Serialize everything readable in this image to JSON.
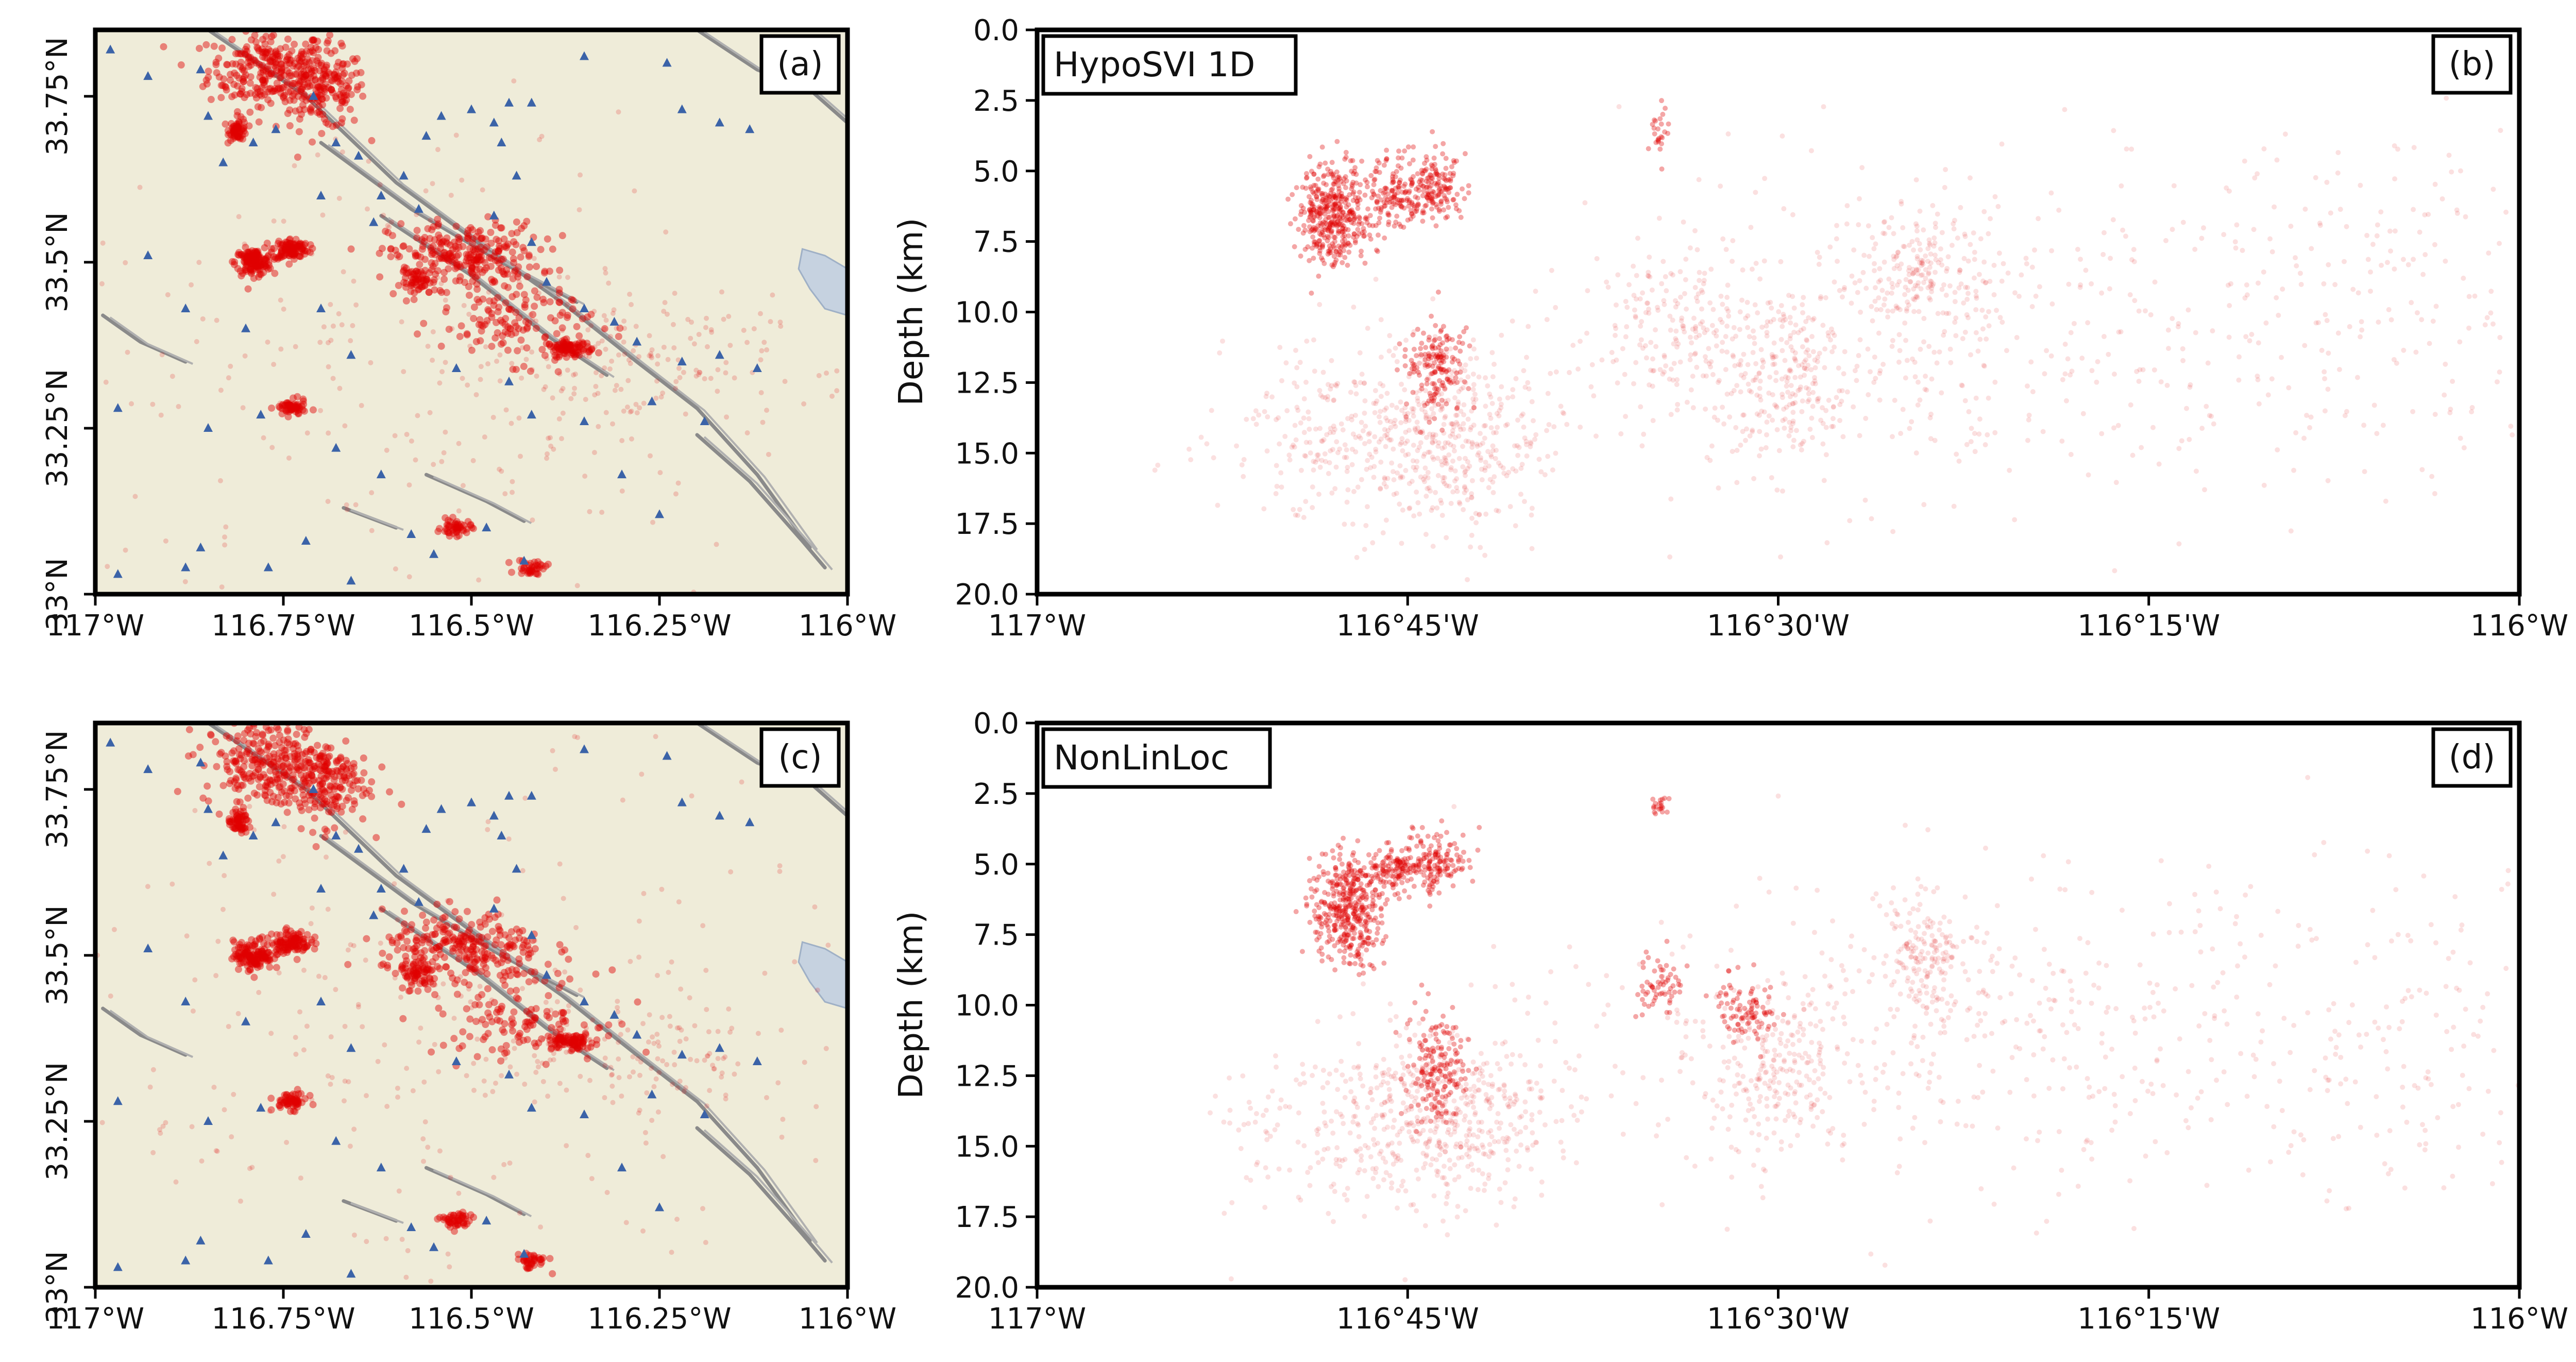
{
  "figure": {
    "description_free": true
  },
  "chart_data": [
    {
      "type": "map",
      "panel_label": "(a)",
      "xlim": [
        -117,
        -116
      ],
      "ylim": [
        33.0,
        33.85
      ],
      "xticks": [
        -117,
        -116.75,
        -116.5,
        -116.25,
        -116
      ],
      "xtick_labels": [
        "117°W",
        "116.75°W",
        "116.5°W",
        "116.25°W",
        "116°W"
      ],
      "yticks": [
        33.0,
        33.25,
        33.5,
        33.75
      ],
      "ytick_labels": [
        "33°N",
        "33.25°N",
        "33.5°N",
        "33.75°N"
      ],
      "legend": [],
      "colors": {
        "land": "#efecd9",
        "lake": "#c6d2e0",
        "events": "#e00000",
        "stations": "#3b63a8",
        "faults": "#8a8a8a"
      }
    },
    {
      "type": "scatter",
      "panel_label": "(b)",
      "method_label": "HypoSVI 1D",
      "xlim": [
        -117,
        -116
      ],
      "ylim": [
        20,
        0
      ],
      "xticks": [
        -117,
        -116.75,
        -116.5,
        -116.25,
        -116
      ],
      "xtick_labels": [
        "117°W",
        "116°45'W",
        "116°30'W",
        "116°15'W",
        "116°W"
      ],
      "yticks": [
        0,
        2.5,
        5,
        7.5,
        10,
        12.5,
        15,
        17.5,
        20
      ],
      "ytick_labels": [
        "0.0",
        "2.5",
        "5.0",
        "7.5",
        "10.0",
        "12.5",
        "15.0",
        "17.5",
        "20.0"
      ],
      "ylabel": "Depth (km)",
      "xlabel": "",
      "color": "#e00000"
    },
    {
      "type": "map",
      "panel_label": "(c)",
      "xlim": [
        -117,
        -116
      ],
      "ylim": [
        33.0,
        33.85
      ],
      "xticks": [
        -117,
        -116.75,
        -116.5,
        -116.25,
        -116
      ],
      "xtick_labels": [
        "117°W",
        "116.75°W",
        "116.5°W",
        "116.25°W",
        "116°W"
      ],
      "yticks": [
        33.0,
        33.25,
        33.5,
        33.75
      ],
      "ytick_labels": [
        "33°N",
        "33.25°N",
        "33.5°N",
        "33.75°N"
      ],
      "legend": [],
      "colors": {
        "land": "#efecd9",
        "lake": "#c6d2e0",
        "events": "#e00000",
        "stations": "#3b63a8",
        "faults": "#8a8a8a"
      }
    },
    {
      "type": "scatter",
      "panel_label": "(d)",
      "method_label": "NonLinLoc",
      "xlim": [
        -117,
        -116
      ],
      "ylim": [
        20,
        0
      ],
      "xticks": [
        -117,
        -116.75,
        -116.5,
        -116.25,
        -116
      ],
      "xtick_labels": [
        "117°W",
        "116°45'W",
        "116°30'W",
        "116°15'W",
        "116°W"
      ],
      "yticks": [
        0,
        2.5,
        5,
        7.5,
        10,
        12.5,
        15,
        17.5,
        20
      ],
      "ytick_labels": [
        "0.0",
        "2.5",
        "5.0",
        "7.5",
        "10.0",
        "12.5",
        "15.0",
        "17.5",
        "20.0"
      ],
      "ylabel": "Depth (km)",
      "xlabel": "",
      "color": "#e00000"
    }
  ],
  "event_clusters": {
    "note_units": "lon (deg), lat (deg) for map; lon (deg), depth (km) for sections; counts are event counts",
    "map": [
      {
        "lon": -116.77,
        "lat": 33.79,
        "slon": 0.04,
        "slat": 0.03,
        "n": 260
      },
      {
        "lon": -116.7,
        "lat": 33.76,
        "slon": 0.03,
        "slat": 0.03,
        "n": 180
      },
      {
        "lon": -116.81,
        "lat": 33.7,
        "slon": 0.006,
        "slat": 0.008,
        "n": 60
      },
      {
        "lon": -116.79,
        "lat": 33.5,
        "slon": 0.012,
        "slat": 0.01,
        "n": 140
      },
      {
        "lon": -116.74,
        "lat": 33.52,
        "slon": 0.012,
        "slat": 0.008,
        "n": 110
      },
      {
        "lon": -116.51,
        "lat": 33.51,
        "slon": 0.05,
        "slat": 0.025,
        "n": 260
      },
      {
        "lon": -116.57,
        "lat": 33.47,
        "slon": 0.012,
        "slat": 0.01,
        "n": 60
      },
      {
        "lon": -116.37,
        "lat": 33.37,
        "slon": 0.015,
        "slat": 0.006,
        "n": 90
      },
      {
        "lon": -116.44,
        "lat": 33.41,
        "slon": 0.05,
        "slat": 0.03,
        "n": 120
      },
      {
        "lon": -116.74,
        "lat": 33.28,
        "slon": 0.01,
        "slat": 0.006,
        "n": 60
      },
      {
        "lon": -116.52,
        "lat": 33.1,
        "slon": 0.01,
        "slat": 0.006,
        "n": 50
      },
      {
        "lon": -116.42,
        "lat": 33.04,
        "slon": 0.01,
        "slat": 0.006,
        "n": 40
      },
      {
        "lon": -116.3,
        "lat": 33.35,
        "slon": 0.1,
        "slat": 0.05,
        "n": 140
      },
      {
        "lon": -116.55,
        "lat": 33.35,
        "slon": 0.25,
        "slat": 0.2,
        "n": 260
      }
    ],
    "section_b": [
      {
        "lon": -116.8,
        "depth": 6.6,
        "slon": 0.012,
        "sdepth": 0.9,
        "n": 420
      },
      {
        "lon": -116.76,
        "depth": 5.7,
        "slon": 0.01,
        "sdepth": 0.6,
        "n": 140
      },
      {
        "lon": -116.73,
        "depth": 5.6,
        "slon": 0.01,
        "sdepth": 0.6,
        "n": 150
      },
      {
        "lon": -116.73,
        "depth": 12.0,
        "slon": 0.01,
        "sdepth": 0.8,
        "n": 160
      },
      {
        "lon": -116.77,
        "depth": 14.2,
        "slon": 0.05,
        "sdepth": 1.6,
        "n": 380
      },
      {
        "lon": -116.71,
        "depth": 14.5,
        "slon": 0.03,
        "sdepth": 1.6,
        "n": 260
      },
      {
        "lon": -116.57,
        "depth": 10.5,
        "slon": 0.03,
        "sdepth": 1.3,
        "n": 160
      },
      {
        "lon": -116.5,
        "depth": 12.5,
        "slon": 0.025,
        "sdepth": 1.5,
        "n": 220
      },
      {
        "lon": -116.4,
        "depth": 8.6,
        "slon": 0.02,
        "sdepth": 1.2,
        "n": 200
      },
      {
        "lon": -116.45,
        "depth": 11.0,
        "slon": 0.12,
        "sdepth": 3.0,
        "n": 320
      },
      {
        "lon": -116.2,
        "depth": 10.5,
        "slon": 0.12,
        "sdepth": 3.0,
        "n": 240
      },
      {
        "lon": -116.05,
        "depth": 9.0,
        "slon": 0.06,
        "sdepth": 3.0,
        "n": 90
      },
      {
        "lon": -116.58,
        "depth": 3.8,
        "slon": 0.003,
        "sdepth": 0.6,
        "n": 25
      }
    ],
    "section_d": [
      {
        "lon": -116.79,
        "depth": 6.5,
        "slon": 0.012,
        "sdepth": 1.0,
        "n": 420
      },
      {
        "lon": -116.76,
        "depth": 5.2,
        "slon": 0.008,
        "sdepth": 0.4,
        "n": 120
      },
      {
        "lon": -116.73,
        "depth": 5.0,
        "slon": 0.01,
        "sdepth": 0.6,
        "n": 150
      },
      {
        "lon": -116.73,
        "depth": 12.3,
        "slon": 0.01,
        "sdepth": 1.0,
        "n": 170
      },
      {
        "lon": -116.77,
        "depth": 14.0,
        "slon": 0.05,
        "sdepth": 1.6,
        "n": 360
      },
      {
        "lon": -116.71,
        "depth": 14.2,
        "slon": 0.03,
        "sdepth": 1.6,
        "n": 250
      },
      {
        "lon": -116.58,
        "depth": 9.3,
        "slon": 0.008,
        "sdepth": 0.5,
        "n": 60
      },
      {
        "lon": -116.52,
        "depth": 10.2,
        "slon": 0.01,
        "sdepth": 0.6,
        "n": 90
      },
      {
        "lon": -116.5,
        "depth": 12.2,
        "slon": 0.025,
        "sdepth": 1.4,
        "n": 200
      },
      {
        "lon": -116.4,
        "depth": 8.2,
        "slon": 0.015,
        "sdepth": 1.0,
        "n": 180
      },
      {
        "lon": -116.45,
        "depth": 11.0,
        "slon": 0.12,
        "sdepth": 3.0,
        "n": 300
      },
      {
        "lon": -116.2,
        "depth": 11.0,
        "slon": 0.12,
        "sdepth": 2.8,
        "n": 230
      },
      {
        "lon": -116.05,
        "depth": 11.5,
        "slon": 0.06,
        "sdepth": 2.5,
        "n": 90
      },
      {
        "lon": -116.58,
        "depth": 3.0,
        "slon": 0.003,
        "sdepth": 0.2,
        "n": 20
      }
    ]
  },
  "stations": [
    [
      -116.98,
      33.82
    ],
    [
      -116.93,
      33.78
    ],
    [
      -116.86,
      33.79
    ],
    [
      -116.85,
      33.72
    ],
    [
      -116.83,
      33.65
    ],
    [
      -116.79,
      33.68
    ],
    [
      -116.76,
      33.7
    ],
    [
      -116.71,
      33.75
    ],
    [
      -116.68,
      33.68
    ],
    [
      -116.65,
      33.66
    ],
    [
      -116.62,
      33.6
    ],
    [
      -116.59,
      33.63
    ],
    [
      -116.56,
      33.69
    ],
    [
      -116.54,
      33.72
    ],
    [
      -116.5,
      33.73
    ],
    [
      -116.47,
      33.71
    ],
    [
      -116.45,
      33.74
    ],
    [
      -116.46,
      33.68
    ],
    [
      -116.44,
      33.63
    ],
    [
      -116.42,
      33.74
    ],
    [
      -116.35,
      33.81
    ],
    [
      -116.24,
      33.8
    ],
    [
      -116.22,
      33.73
    ],
    [
      -116.17,
      33.71
    ],
    [
      -116.13,
      33.7
    ],
    [
      -116.7,
      33.6
    ],
    [
      -116.63,
      33.56
    ],
    [
      -116.57,
      33.58
    ],
    [
      -116.47,
      33.57
    ],
    [
      -116.42,
      33.53
    ],
    [
      -116.4,
      33.47
    ],
    [
      -116.35,
      33.43
    ],
    [
      -116.31,
      33.41
    ],
    [
      -116.28,
      33.38
    ],
    [
      -116.22,
      33.35
    ],
    [
      -116.17,
      33.36
    ],
    [
      -116.12,
      33.34
    ],
    [
      -116.93,
      33.51
    ],
    [
      -116.88,
      33.43
    ],
    [
      -116.8,
      33.4
    ],
    [
      -116.7,
      33.43
    ],
    [
      -116.66,
      33.36
    ],
    [
      -116.52,
      33.34
    ],
    [
      -116.45,
      33.32
    ],
    [
      -116.42,
      33.27
    ],
    [
      -116.35,
      33.26
    ],
    [
      -116.26,
      33.29
    ],
    [
      -116.19,
      33.26
    ],
    [
      -116.97,
      33.28
    ],
    [
      -116.85,
      33.25
    ],
    [
      -116.78,
      33.27
    ],
    [
      -116.68,
      33.22
    ],
    [
      -116.62,
      33.18
    ],
    [
      -116.58,
      33.09
    ],
    [
      -116.55,
      33.06
    ],
    [
      -116.48,
      33.1
    ],
    [
      -116.43,
      33.05
    ],
    [
      -116.66,
      33.02
    ],
    [
      -116.72,
      33.08
    ],
    [
      -116.77,
      33.04
    ],
    [
      -116.86,
      33.07
    ],
    [
      -116.88,
      33.04
    ],
    [
      -116.97,
      33.03
    ],
    [
      -116.3,
      33.18
    ],
    [
      -116.25,
      33.12
    ]
  ],
  "faults": [
    [
      [
        -116.85,
        33.85
      ],
      [
        -116.72,
        33.75
      ],
      [
        -116.6,
        33.62
      ],
      [
        -116.48,
        33.52
      ],
      [
        -116.38,
        33.44
      ],
      [
        -116.28,
        33.35
      ],
      [
        -116.2,
        33.28
      ],
      [
        -116.12,
        33.18
      ],
      [
        -116.05,
        33.07
      ]
    ],
    [
      [
        -116.7,
        33.68
      ],
      [
        -116.58,
        33.58
      ],
      [
        -116.46,
        33.5
      ],
      [
        -116.36,
        33.44
      ]
    ],
    [
      [
        -116.62,
        33.57
      ],
      [
        -116.5,
        33.48
      ],
      [
        -116.4,
        33.39
      ],
      [
        -116.32,
        33.33
      ]
    ],
    [
      [
        -116.2,
        33.24
      ],
      [
        -116.13,
        33.17
      ],
      [
        -116.06,
        33.08
      ],
      [
        -116.03,
        33.04
      ]
    ],
    [
      [
        -116.56,
        33.18
      ],
      [
        -116.48,
        33.14
      ],
      [
        -116.43,
        33.11
      ]
    ],
    [
      [
        -116.67,
        33.13
      ],
      [
        -116.6,
        33.1
      ]
    ],
    [
      [
        -116.99,
        33.42
      ],
      [
        -116.94,
        33.38
      ],
      [
        -116.88,
        33.35
      ]
    ],
    [
      [
        -116.2,
        33.85
      ],
      [
        -116.12,
        33.79
      ],
      [
        -116.05,
        33.76
      ],
      [
        -116.0,
        33.71
      ]
    ]
  ],
  "lake": [
    [
      -116.0,
      33.49
    ],
    [
      -116.03,
      33.51
    ],
    [
      -116.06,
      33.52
    ],
    [
      -116.065,
      33.49
    ],
    [
      -116.05,
      33.46
    ],
    [
      -116.03,
      33.43
    ],
    [
      -116.0,
      33.42
    ]
  ],
  "faults_color": "#8a8a8a"
}
